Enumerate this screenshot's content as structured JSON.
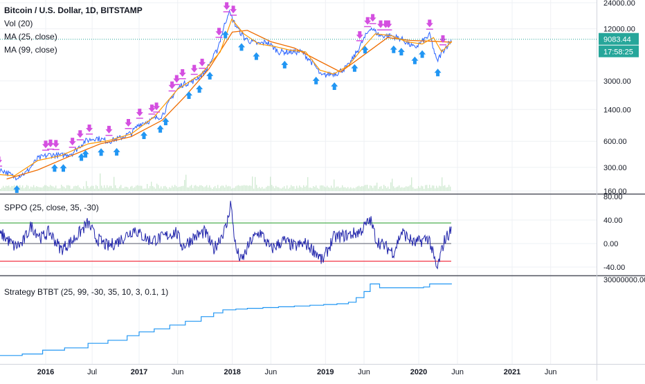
{
  "chart_data": [
    {
      "type": "line",
      "pane": "price",
      "title": "Bitcoin / U.S. Dollar, 1D, BITSTAMP",
      "indicators": [
        "Vol (20)",
        "MA (25, close)",
        "MA (99, close)"
      ],
      "y_scale": "log",
      "ylim": [
        160,
        24000
      ],
      "y_ticks": [
        24000,
        12000,
        3000,
        1400,
        600,
        300,
        160
      ],
      "y_tick_labels": [
        "24000.00",
        "12000.00",
        "3000.00",
        "1400.00",
        "600.00",
        "300.00",
        "160.00"
      ],
      "last_price": "9083.44",
      "countdown": "17:58:25",
      "colors": {
        "price": "#2962ff",
        "ma25": "#ff9800",
        "ma99": "#ef6c00",
        "sell_marker": "#d44fe0",
        "buy_marker": "#2196f3",
        "price_line": "#26a69a"
      },
      "series": [
        {
          "name": "Price",
          "x": [
            "2015-06-01",
            "2015-07-15",
            "2015-09-01",
            "2015-10-15",
            "2015-12-01",
            "2016-01-15",
            "2016-03-01",
            "2016-04-15",
            "2016-06-01",
            "2016-07-15",
            "2016-09-01",
            "2016-10-15",
            "2016-12-01",
            "2017-01-01",
            "2017-02-15",
            "2017-04-01",
            "2017-05-15",
            "2017-06-15",
            "2017-08-01",
            "2017-09-15",
            "2017-11-01",
            "2017-12-17",
            "2018-01-15",
            "2018-02-15",
            "2018-03-15",
            "2018-04-15",
            "2018-05-15",
            "2018-07-01",
            "2018-08-15",
            "2018-10-01",
            "2018-11-20",
            "2018-12-15",
            "2019-01-15",
            "2019-02-15",
            "2019-04-01",
            "2019-05-15",
            "2019-06-26",
            "2019-08-01",
            "2019-09-15",
            "2019-10-25",
            "2019-12-15",
            "2020-02-13",
            "2020-03-12",
            "2020-04-01",
            "2020-05-10"
          ],
          "y": [
            240,
            280,
            230,
            260,
            380,
            420,
            410,
            440,
            600,
            660,
            600,
            650,
            750,
            950,
            1050,
            1200,
            2100,
            2700,
            3000,
            3800,
            6700,
            19000,
            13000,
            9500,
            8500,
            8000,
            8500,
            6500,
            6500,
            6500,
            4500,
            3400,
            3600,
            3700,
            4500,
            7500,
            12500,
            10000,
            10000,
            9200,
            7200,
            10200,
            5000,
            6500,
            9083
          ]
        },
        {
          "name": "MA (25, close)",
          "x": [
            "2015-06-15",
            "2015-09-01",
            "2015-12-01",
            "2016-03-01",
            "2016-06-15",
            "2016-09-01",
            "2016-12-01",
            "2017-03-01",
            "2017-06-01",
            "2017-09-01",
            "2017-11-15",
            "2017-12-30",
            "2018-02-15",
            "2018-04-15",
            "2018-06-15",
            "2018-08-15",
            "2018-10-15",
            "2018-12-10",
            "2019-02-01",
            "2019-04-01",
            "2019-06-01",
            "2019-07-15",
            "2019-09-15",
            "2019-11-15",
            "2020-01-15",
            "2020-02-28",
            "2020-03-31",
            "2020-05-10"
          ],
          "y": [
            250,
            240,
            360,
            410,
            560,
            610,
            730,
            1150,
            2400,
            3600,
            6500,
            15500,
            10500,
            8000,
            7500,
            6800,
            6500,
            4000,
            3600,
            4500,
            7500,
            10500,
            10000,
            8500,
            8000,
            9500,
            6500,
            8600
          ]
        },
        {
          "name": "MA (99, close)",
          "x": [
            "2015-08-01",
            "2015-12-01",
            "2016-04-01",
            "2016-08-01",
            "2016-12-01",
            "2017-04-01",
            "2017-07-01",
            "2017-10-01",
            "2018-01-01",
            "2018-03-01",
            "2018-06-01",
            "2018-09-01",
            "2018-12-01",
            "2019-03-01",
            "2019-06-01",
            "2019-09-01",
            "2019-12-01",
            "2020-03-01",
            "2020-05-10"
          ],
          "y": [
            220,
            280,
            400,
            560,
            680,
            1050,
            2000,
            4100,
            11000,
            11500,
            8500,
            7200,
            5200,
            3800,
            6000,
            9500,
            8800,
            8600,
            8400
          ]
        }
      ]
    },
    {
      "type": "line",
      "pane": "oscillator",
      "title": "SPPO (25, close, 35, -30)",
      "ylim": [
        -50,
        80
      ],
      "y_ticks": [
        80,
        40,
        0,
        -40
      ],
      "y_tick_labels": [
        "80.00",
        "40.00",
        "0.00",
        "-40.00"
      ],
      "levels": [
        {
          "value": 35,
          "color": "#4caf50"
        },
        {
          "value": 0,
          "color": "#787b86"
        },
        {
          "value": -30,
          "color": "#f23645"
        }
      ],
      "colors": {
        "line": "#1e22aa"
      },
      "series": [
        {
          "name": "SPPO",
          "x": [
            "2015-06-01",
            "2015-07-15",
            "2015-09-01",
            "2015-10-01",
            "2015-11-05",
            "2015-12-15",
            "2016-01-15",
            "2016-03-01",
            "2016-04-15",
            "2016-06-15",
            "2016-07-15",
            "2016-09-01",
            "2016-10-15",
            "2016-12-15",
            "2017-01-05",
            "2017-02-15",
            "2017-04-01",
            "2017-05-25",
            "2017-06-20",
            "2017-08-01",
            "2017-09-15",
            "2017-10-20",
            "2017-12-10",
            "2017-12-25",
            "2018-01-15",
            "2018-02-06",
            "2018-03-15",
            "2018-04-20",
            "2018-06-01",
            "2018-07-20",
            "2018-09-01",
            "2018-10-15",
            "2018-11-25",
            "2018-12-20",
            "2019-02-01",
            "2019-04-05",
            "2019-05-15",
            "2019-06-26",
            "2019-07-20",
            "2019-09-25",
            "2019-10-26",
            "2019-12-15",
            "2020-02-10",
            "2020-03-12",
            "2020-04-10",
            "2020-05-10"
          ],
          "y": [
            5,
            15,
            -5,
            0,
            30,
            10,
            20,
            -10,
            5,
            35,
            10,
            -5,
            5,
            25,
            15,
            5,
            10,
            20,
            -5,
            10,
            20,
            -10,
            30,
            70,
            -10,
            -30,
            5,
            20,
            -10,
            5,
            -5,
            0,
            -15,
            -30,
            10,
            15,
            20,
            40,
            5,
            -15,
            20,
            0,
            10,
            -45,
            5,
            25
          ]
        }
      ]
    },
    {
      "type": "line",
      "pane": "strategy",
      "title": "Strategy BTBT (25, 99, -30, 35, 10, 3, 0.1, 1)",
      "y_tick_labels": [
        "30000000.00"
      ],
      "colors": {
        "line": "#2196f3"
      },
      "series": [
        {
          "name": "Equity",
          "x": [
            "2015-06-01",
            "2015-10-01",
            "2015-12-20",
            "2016-03-15",
            "2016-06-15",
            "2016-09-01",
            "2016-11-15",
            "2017-01-01",
            "2017-03-01",
            "2017-05-01",
            "2017-07-01",
            "2017-09-01",
            "2017-10-20",
            "2017-11-25",
            "2018-01-15",
            "2018-03-01",
            "2018-05-01",
            "2018-07-01",
            "2018-09-01",
            "2018-11-01",
            "2018-12-25",
            "2019-02-15",
            "2019-04-01",
            "2019-05-01",
            "2019-06-01",
            "2019-06-25",
            "2019-08-01",
            "2019-11-01",
            "2020-01-20",
            "2020-02-13",
            "2020-05-10"
          ],
          "y": [
            0.02,
            0.04,
            0.09,
            0.12,
            0.18,
            0.22,
            0.28,
            0.33,
            0.37,
            0.42,
            0.47,
            0.53,
            0.58,
            0.62,
            0.63,
            0.64,
            0.65,
            0.66,
            0.67,
            0.68,
            0.69,
            0.7,
            0.72,
            0.78,
            0.86,
            0.96,
            0.91,
            0.91,
            0.92,
            0.96,
            0.96
          ]
        }
      ]
    },
    {
      "type": "time_axis",
      "tick_dates": [
        "2016-01-01",
        "2016-07-01",
        "2017-01-01",
        "2017-06-01",
        "2018-01-01",
        "2018-06-01",
        "2019-01-01",
        "2019-06-01",
        "2020-01-01",
        "2020-06-01",
        "2021-01-01",
        "2021-06-01"
      ],
      "tick_labels": [
        "2016",
        "Jul",
        "2017",
        "Jun",
        "2018",
        "Jun",
        "2019",
        "Jun",
        "2020",
        "Jun",
        "2021",
        "Jun"
      ],
      "bold_labels": [
        "2016",
        "2017",
        "2018",
        "2019",
        "2020",
        "2021"
      ]
    }
  ]
}
